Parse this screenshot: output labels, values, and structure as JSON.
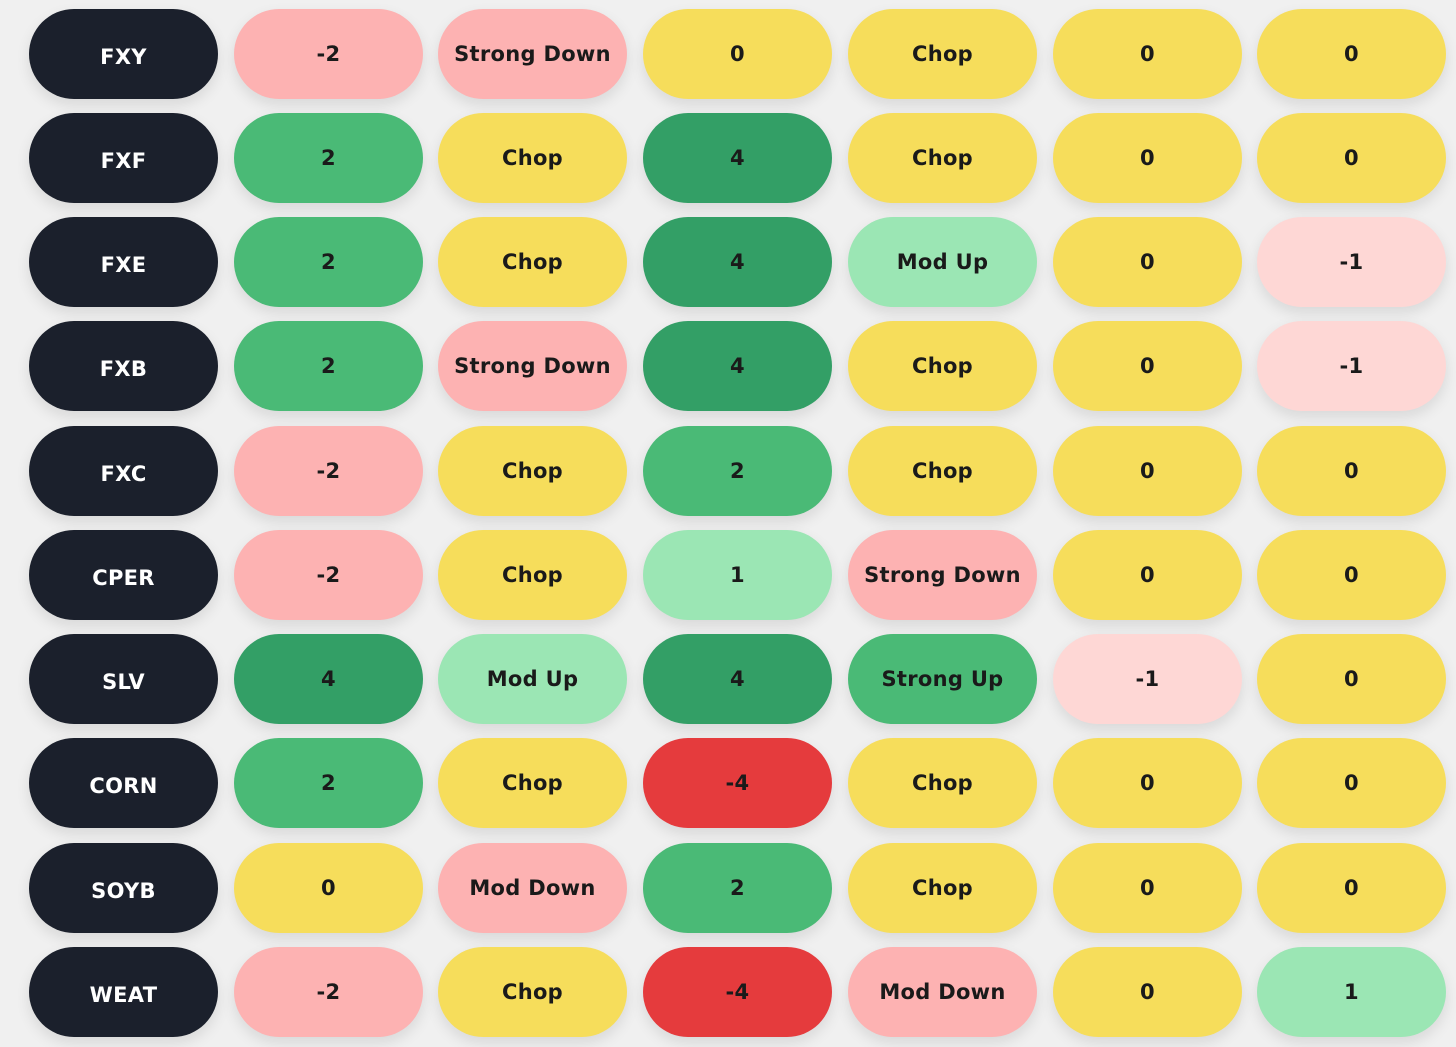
{
  "colors": {
    "ticker": "#1b202c",
    "strong_green": "#4aba76",
    "dark_green": "#339f66",
    "light_green": "#9be6b4",
    "yellow": "#f6dd5b",
    "pink": "#fdb2b2",
    "light_pink": "#fed7d5",
    "red": "#e53b3d"
  },
  "rows": [
    {
      "ticker": "FXY",
      "cells": [
        "-2",
        "Strong Down",
        "0",
        "Chop",
        "0",
        "0"
      ],
      "styles": [
        "pink",
        "pink",
        "yellow",
        "yellow",
        "yellow",
        "yellow"
      ]
    },
    {
      "ticker": "FXF",
      "cells": [
        "2",
        "Chop",
        "4",
        "Chop",
        "0",
        "0"
      ],
      "styles": [
        "green",
        "yellow",
        "darkgreen",
        "yellow",
        "yellow",
        "yellow"
      ]
    },
    {
      "ticker": "FXE",
      "cells": [
        "2",
        "Chop",
        "4",
        "Mod Up",
        "0",
        "-1"
      ],
      "styles": [
        "green",
        "yellow",
        "darkgreen",
        "lightgreen",
        "yellow",
        "lightpink"
      ]
    },
    {
      "ticker": "FXB",
      "cells": [
        "2",
        "Strong Down",
        "4",
        "Chop",
        "0",
        "-1"
      ],
      "styles": [
        "green",
        "pink",
        "darkgreen",
        "yellow",
        "yellow",
        "lightpink"
      ]
    },
    {
      "ticker": "FXC",
      "cells": [
        "-2",
        "Chop",
        "2",
        "Chop",
        "0",
        "0"
      ],
      "styles": [
        "pink",
        "yellow",
        "green",
        "yellow",
        "yellow",
        "yellow"
      ]
    },
    {
      "ticker": "CPER",
      "cells": [
        "-2",
        "Chop",
        "1",
        "Strong Down",
        "0",
        "0"
      ],
      "styles": [
        "pink",
        "yellow",
        "lightgreen",
        "pink",
        "yellow",
        "yellow"
      ]
    },
    {
      "ticker": "SLV",
      "cells": [
        "4",
        "Mod Up",
        "4",
        "Strong Up",
        "-1",
        "0"
      ],
      "styles": [
        "darkgreen",
        "lightgreen",
        "darkgreen",
        "green",
        "lightpink",
        "yellow"
      ]
    },
    {
      "ticker": "CORN",
      "cells": [
        "2",
        "Chop",
        "-4",
        "Chop",
        "0",
        "0"
      ],
      "styles": [
        "green",
        "yellow",
        "red",
        "yellow",
        "yellow",
        "yellow"
      ]
    },
    {
      "ticker": "SOYB",
      "cells": [
        "0",
        "Mod Down",
        "2",
        "Chop",
        "0",
        "0"
      ],
      "styles": [
        "yellow",
        "pink",
        "green",
        "yellow",
        "yellow",
        "yellow"
      ]
    },
    {
      "ticker": "WEAT",
      "cells": [
        "-2",
        "Chop",
        "-4",
        "Mod Down",
        "0",
        "1"
      ],
      "styles": [
        "pink",
        "yellow",
        "red",
        "pink",
        "yellow",
        "lightgreen"
      ]
    }
  ]
}
